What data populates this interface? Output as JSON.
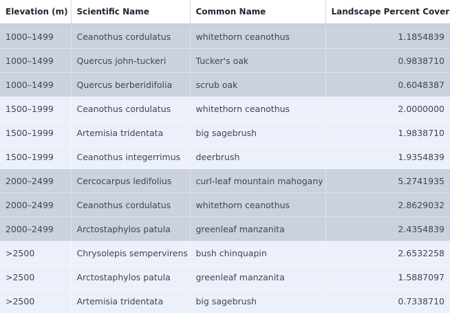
{
  "table": {
    "headers": [
      "Elevation (m)",
      "Scientific Name",
      "Common Name",
      "Landscape Percent Cover"
    ],
    "rows": [
      {
        "band": "a",
        "cells": [
          "1000–1499",
          "Ceanothus cordulatus",
          "whitethorn ceanothus",
          "1.1854839"
        ]
      },
      {
        "band": "a",
        "cells": [
          "1000–1499",
          "Quercus john-tuckeri",
          "Tucker's oak",
          "0.9838710"
        ]
      },
      {
        "band": "a",
        "cells": [
          "1000–1499",
          "Quercus berberidifolia",
          "scrub oak",
          "0.6048387"
        ]
      },
      {
        "band": "b",
        "cells": [
          "1500–1999",
          "Ceanothus cordulatus",
          "whitethorn ceanothus",
          "2.0000000"
        ]
      },
      {
        "band": "b",
        "cells": [
          "1500–1999",
          "Artemisia tridentata",
          "big sagebrush",
          "1.9838710"
        ]
      },
      {
        "band": "b",
        "cells": [
          "1500–1999",
          "Ceanothus integerrimus",
          "deerbrush",
          "1.9354839"
        ]
      },
      {
        "band": "a",
        "cells": [
          "2000–2499",
          "Cercocarpus ledifolius",
          "curl-leaf mountain mahogany",
          "5.2741935"
        ]
      },
      {
        "band": "a",
        "cells": [
          "2000–2499",
          "Ceanothus cordulatus",
          "whitethorn ceanothus",
          "2.8629032"
        ]
      },
      {
        "band": "a",
        "cells": [
          "2000–2499",
          "Arctostaphylos patula",
          "greenleaf manzanita",
          "2.4354839"
        ]
      },
      {
        "band": "b",
        "cells": [
          ">2500",
          "Chrysolepis sempervirens",
          "bush chinquapin",
          "2.6532258"
        ]
      },
      {
        "band": "b",
        "cells": [
          ">2500",
          "Arctostaphylos patula",
          "greenleaf manzanita",
          "1.5887097"
        ]
      },
      {
        "band": "b",
        "cells": [
          ">2500",
          "Artemisia tridentata",
          "big sagebrush",
          "0.7338710"
        ]
      }
    ]
  },
  "colors": {
    "band_a": "#cbd2df",
    "band_b": "#ebf0fa",
    "header_bg": "#ffffff",
    "text": "#3f4550"
  }
}
